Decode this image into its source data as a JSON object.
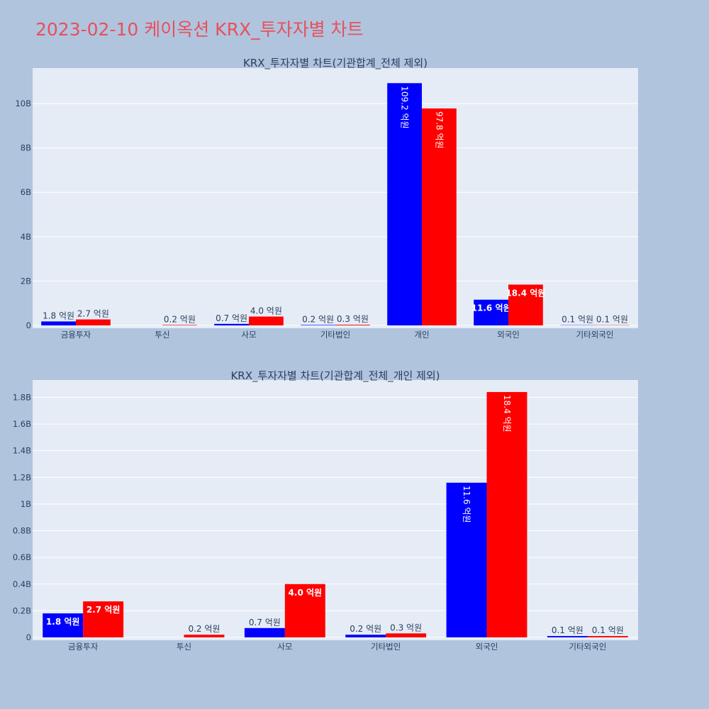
{
  "title": "2023-02-10 케이옥션 KRX_투자자별 차트",
  "colors": {
    "series1": "#0000ff",
    "series2": "#ff0000",
    "plot_bg": "#e5ecf6",
    "paper_bg": "#b0c4de",
    "title": "#e8505b"
  },
  "chart_data": [
    {
      "type": "bar",
      "title": "KRX_투자자별 차트(기관합계_전체 제외)",
      "categories": [
        "금융투자",
        "투신",
        "사모",
        "기타법인",
        "개인",
        "외국인",
        "기타외국인"
      ],
      "series": [
        {
          "values": [
            180000000,
            0,
            70000000,
            20000000,
            10920000000,
            1160000000,
            10000000
          ],
          "labels": [
            "1.8 억원",
            "",
            "0.7 억원",
            "0.2 억원",
            "109.2 억원",
            "11.6 억원",
            "0.1 억원"
          ]
        },
        {
          "values": [
            270000000,
            20000000,
            400000000,
            30000000,
            9780000000,
            1840000000,
            10000000
          ],
          "labels": [
            "2.7 억원",
            "0.2 억원",
            "4.0 억원",
            "0.3 억원",
            "97.8 억원",
            "18.4 억원",
            "0.1 억원"
          ]
        }
      ],
      "yticks": [
        0,
        2000000000,
        4000000000,
        6000000000,
        8000000000,
        10000000000
      ],
      "ytick_labels": [
        "0",
        "2B",
        "4B",
        "6B",
        "8B",
        "10B"
      ],
      "ylim": [
        0,
        11600000000
      ],
      "grid": true
    },
    {
      "type": "bar",
      "title": "KRX_투자자별 차트(기관합계_전체_개인 제외)",
      "categories": [
        "금융투자",
        "투신",
        "사모",
        "기타법인",
        "외국인",
        "기타외국인"
      ],
      "series": [
        {
          "values": [
            180000000,
            0,
            70000000,
            20000000,
            1160000000,
            10000000
          ],
          "labels": [
            "1.8 억원",
            "",
            "0.7 억원",
            "0.2 억원",
            "11.6 억원",
            "0.1 억원"
          ]
        },
        {
          "values": [
            270000000,
            20000000,
            400000000,
            30000000,
            1840000000,
            10000000
          ],
          "labels": [
            "2.7 억원",
            "0.2 억원",
            "4.0 억원",
            "0.3 억원",
            "18.4 억원",
            "0.1 억원"
          ]
        }
      ],
      "yticks": [
        0,
        200000000,
        400000000,
        600000000,
        800000000,
        1000000000,
        1200000000,
        1400000000,
        1600000000,
        1800000000
      ],
      "ytick_labels": [
        "0",
        "0.2B",
        "0.4B",
        "0.6B",
        "0.8B",
        "1B",
        "1.2B",
        "1.4B",
        "1.6B",
        "1.8B"
      ],
      "ylim": [
        0,
        1930000000
      ],
      "grid": true
    }
  ]
}
